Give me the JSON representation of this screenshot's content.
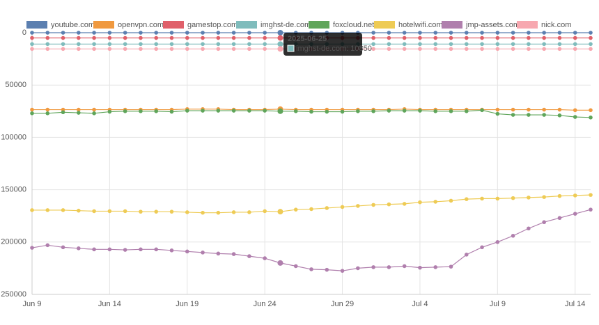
{
  "chart_data": {
    "type": "line",
    "categories": [
      "Jun 9",
      null,
      null,
      null,
      null,
      "Jun 14",
      null,
      null,
      null,
      null,
      "Jun 19",
      null,
      null,
      null,
      null,
      "Jun 24",
      null,
      null,
      null,
      null,
      "Jun 29",
      null,
      null,
      null,
      null,
      "Jul 4",
      null,
      null,
      null,
      null,
      "Jul 9",
      null,
      null,
      null,
      null,
      "Jul 14",
      null
    ],
    "series": [
      {
        "name": "youtube.com",
        "color": "#5b7fb0",
        "values": [
          0,
          0,
          0,
          0,
          0,
          0,
          0,
          0,
          0,
          0,
          0,
          0,
          0,
          0,
          0,
          0,
          0,
          0,
          0,
          0,
          0,
          0,
          0,
          0,
          0,
          0,
          0,
          0,
          0,
          0,
          0,
          0,
          0,
          0,
          0,
          0,
          0
        ]
      },
      {
        "name": "openvpn.com",
        "color": "#f0993f",
        "values": [
          73500,
          73500,
          73500,
          73500,
          73500,
          73500,
          73500,
          73500,
          73500,
          73500,
          73000,
          73000,
          73000,
          73500,
          73500,
          73500,
          73000,
          73500,
          73500,
          73500,
          73500,
          73500,
          73500,
          73500,
          73000,
          73500,
          73500,
          73500,
          73500,
          73500,
          73500,
          73500,
          73500,
          73500,
          73500,
          74000,
          74000
        ]
      },
      {
        "name": "gamestop.com",
        "color": "#e0606a",
        "values": [
          5000,
          5000,
          5000,
          5000,
          5000,
          5000,
          5000,
          5000,
          5000,
          5000,
          5000,
          5000,
          5000,
          5000,
          5000,
          5000,
          5000,
          5000,
          5000,
          5000,
          5000,
          5000,
          5000,
          5000,
          5000,
          5000,
          5000,
          5000,
          5000,
          5000,
          5000,
          5000,
          5000,
          5000,
          5000,
          5000,
          5000
        ]
      },
      {
        "name": "imghst-de.com",
        "color": "#7fbcbc",
        "values": [
          10850,
          10850,
          10850,
          10850,
          10850,
          10850,
          10850,
          10850,
          10850,
          10850,
          10850,
          10850,
          10850,
          10850,
          10850,
          10850,
          10850,
          10850,
          10850,
          10850,
          10850,
          10850,
          10850,
          10850,
          10850,
          10850,
          10850,
          10850,
          10850,
          10850,
          10850,
          10850,
          10850,
          10850,
          10850,
          10850,
          10850
        ]
      },
      {
        "name": "foxcloud.net",
        "color": "#5fa55a",
        "values": [
          77000,
          77000,
          76000,
          76500,
          77000,
          75500,
          75000,
          75000,
          75000,
          75500,
          74500,
          74500,
          74500,
          74500,
          74500,
          74500,
          75000,
          75000,
          75500,
          75500,
          75500,
          75000,
          75000,
          74500,
          74500,
          74500,
          75000,
          75000,
          75000,
          74000,
          77500,
          78500,
          78500,
          78500,
          79000,
          80500,
          81000
        ]
      },
      {
        "name": "hotelwifi.com",
        "color": "#eecb55",
        "values": [
          169500,
          169500,
          169500,
          170000,
          170500,
          170500,
          170500,
          171000,
          171000,
          171000,
          171500,
          172000,
          172000,
          171500,
          171500,
          170500,
          171000,
          169000,
          168500,
          167500,
          166500,
          165500,
          164500,
          164000,
          163500,
          162000,
          161500,
          160500,
          159000,
          158500,
          158500,
          158000,
          157500,
          157000,
          156000,
          155500,
          155000
        ]
      },
      {
        "name": "jmp-assets.com",
        "color": "#b07fad",
        "values": [
          205500,
          203000,
          205000,
          206000,
          207000,
          207000,
          207500,
          207000,
          207000,
          208000,
          209000,
          210000,
          211000,
          211500,
          213500,
          215500,
          220000,
          223000,
          226000,
          226500,
          227500,
          225000,
          224000,
          224000,
          223000,
          224500,
          224000,
          223500,
          212000,
          205000,
          200000,
          194000,
          187000,
          181000,
          177000,
          173000,
          169000
        ]
      },
      {
        "name": "nick.com",
        "color": "#f7a8b0",
        "values": [
          15500,
          15500,
          15500,
          15500,
          15500,
          15500,
          15500,
          15500,
          15500,
          15500,
          15500,
          15500,
          15500,
          15500,
          15500,
          15500,
          15500,
          15500,
          15500,
          15500,
          15500,
          15500,
          15500,
          15500,
          15500,
          15500,
          15500,
          15500,
          15500,
          15500,
          15500,
          15500,
          15500,
          15500,
          15500,
          15500,
          15500
        ]
      }
    ],
    "ylim": [
      0,
      250000
    ],
    "y_reversed": true,
    "yticks": [
      0,
      50000,
      100000,
      150000,
      200000,
      250000
    ],
    "grid": true,
    "tooltip": {
      "title": "2025-06-25",
      "label": "imghst-de.com: 10850"
    }
  }
}
